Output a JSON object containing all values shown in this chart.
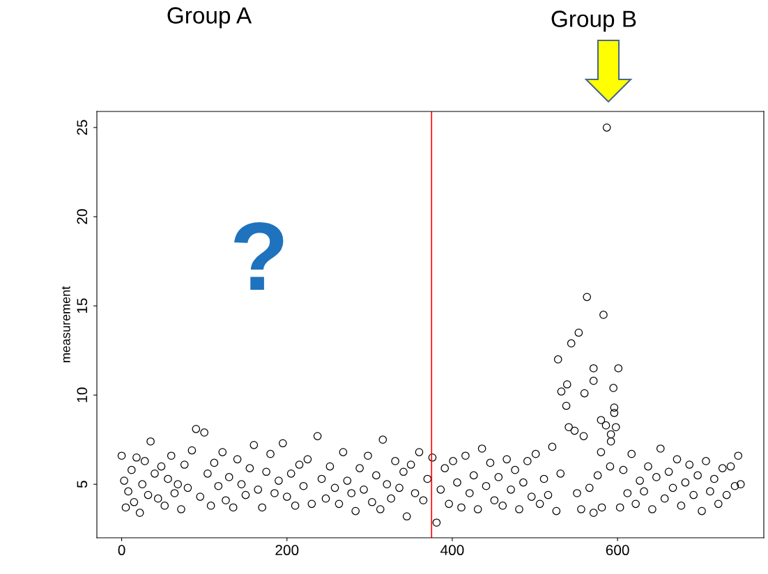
{
  "chart_data": {
    "type": "scatter",
    "ylabel": "measurement",
    "marker": "circle",
    "grid": false,
    "legend": false,
    "annotations": [
      "Group A",
      "Group B",
      "?"
    ],
    "xlim": [
      -30,
      777
    ],
    "ylim": [
      2,
      25.9
    ],
    "xticks": [
      0,
      200,
      400,
      600
    ],
    "yticks": [
      5,
      10,
      15,
      20,
      25
    ],
    "ref_lines": [
      {
        "axis": "x",
        "value": 375,
        "label": null,
        "color": "#ff0000"
      }
    ],
    "series": [
      {
        "color": "#000000",
        "x": [
          0,
          3,
          5,
          8,
          12,
          15,
          18,
          22,
          25,
          28,
          32,
          35,
          40,
          44,
          48,
          52,
          56,
          60,
          64,
          68,
          72,
          76,
          80,
          85,
          90,
          95,
          100,
          104,
          108,
          112,
          117,
          122,
          126,
          130,
          135,
          140,
          145,
          150,
          155,
          160,
          165,
          170,
          175,
          180,
          185,
          190,
          195,
          200,
          205,
          210,
          215,
          220,
          225,
          230,
          237,
          242,
          247,
          252,
          258,
          263,
          268,
          273,
          278,
          283,
          288,
          293,
          298,
          303,
          308,
          313,
          316,
          321,
          326,
          331,
          336,
          341,
          345,
          350,
          355,
          360,
          365,
          370,
          376,
          381,
          386,
          391,
          396,
          401,
          406,
          411,
          416,
          421,
          426,
          431,
          436,
          441,
          446,
          451,
          456,
          461,
          466,
          471,
          476,
          481,
          486,
          491,
          496,
          501,
          506,
          511,
          516,
          521,
          526,
          528,
          531,
          532,
          538,
          539,
          541,
          544,
          548,
          551,
          553,
          556,
          559,
          560,
          563,
          566,
          571,
          571,
          571,
          576,
          580,
          580,
          581,
          583,
          586,
          587,
          591,
          592,
          592,
          595,
          596,
          596,
          598,
          601,
          603,
          607,
          612,
          617,
          622,
          627,
          632,
          637,
          642,
          647,
          652,
          657,
          662,
          667,
          672,
          677,
          682,
          687,
          692,
          697,
          702,
          707,
          712,
          717,
          722,
          727,
          732,
          737,
          742,
          746,
          749
        ],
        "values": [
          6.6,
          5.2,
          3.7,
          4.6,
          5.8,
          4.0,
          6.5,
          3.4,
          5.0,
          6.3,
          4.4,
          7.4,
          5.6,
          4.2,
          6.0,
          3.8,
          5.3,
          6.6,
          4.5,
          5.0,
          3.6,
          6.1,
          4.8,
          6.9,
          8.1,
          4.3,
          7.9,
          5.6,
          3.8,
          6.2,
          4.9,
          6.8,
          4.1,
          5.4,
          3.7,
          6.4,
          5.0,
          4.4,
          5.9,
          7.2,
          4.7,
          3.7,
          5.7,
          6.7,
          4.5,
          5.2,
          7.3,
          4.3,
          5.6,
          3.8,
          6.1,
          4.9,
          6.4,
          3.9,
          7.7,
          5.3,
          4.2,
          6.0,
          4.8,
          3.9,
          6.8,
          5.2,
          4.5,
          3.5,
          5.9,
          4.7,
          6.6,
          4.0,
          5.5,
          3.6,
          7.5,
          5.0,
          4.2,
          6.3,
          4.8,
          5.7,
          3.2,
          6.1,
          4.5,
          6.8,
          4.1,
          5.3,
          6.5,
          2.85,
          4.7,
          5.9,
          3.9,
          6.3,
          5.1,
          3.7,
          6.6,
          4.5,
          5.5,
          3.6,
          7.0,
          4.9,
          6.2,
          4.1,
          5.4,
          3.8,
          6.4,
          4.7,
          5.8,
          3.6,
          5.1,
          6.3,
          4.3,
          6.7,
          3.9,
          5.3,
          4.4,
          7.1,
          3.5,
          12.0,
          5.6,
          10.2,
          9.4,
          10.6,
          8.2,
          12.9,
          8.0,
          4.5,
          13.5,
          3.6,
          7.7,
          10.1,
          15.5,
          4.8,
          11.5,
          10.8,
          3.4,
          5.5,
          8.6,
          6.8,
          3.7,
          14.5,
          8.3,
          25.0,
          6.0,
          7.8,
          7.4,
          10.4,
          9.3,
          9.0,
          8.2,
          11.5,
          3.7,
          5.8,
          4.5,
          6.7,
          3.9,
          5.2,
          4.6,
          6.0,
          3.6,
          5.4,
          7.0,
          4.2,
          5.7,
          4.8,
          6.4,
          3.8,
          5.1,
          6.1,
          4.4,
          5.5,
          3.5,
          6.3,
          4.6,
          5.3,
          3.9,
          5.9,
          4.4,
          6.0,
          4.9,
          6.6,
          5.0
        ]
      }
    ]
  }
}
